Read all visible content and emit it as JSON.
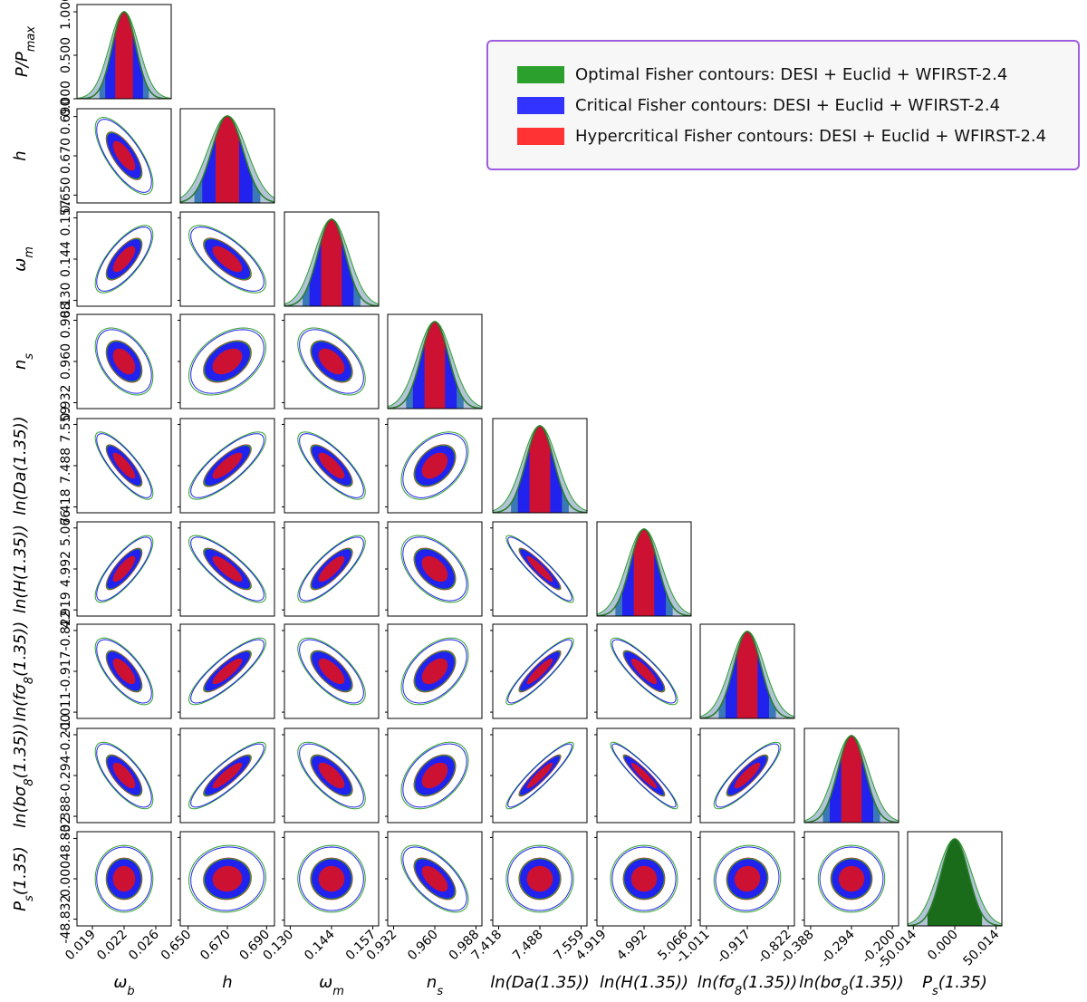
{
  "chart_data": {
    "type": "corner-fisher-contours",
    "parameters": [
      {
        "key": "wb",
        "label": "ω_b",
        "fid": 0.0225,
        "sigma": 0.0013,
        "ticks": [
          "0.019",
          "0.022",
          "0.026"
        ],
        "tickvals": [
          0.019,
          0.0225,
          0.026
        ],
        "range": [
          0.0173,
          0.0277
        ]
      },
      {
        "key": "h",
        "label": "h",
        "fid": 0.67,
        "sigma": 0.008,
        "ticks": [
          "0.650",
          "0.670",
          "0.690"
        ],
        "tickvals": [
          0.65,
          0.67,
          0.69
        ],
        "range": [
          0.646,
          0.694
        ]
      },
      {
        "key": "wm",
        "label": "ω_m",
        "fid": 0.1435,
        "sigma": 0.0045,
        "ticks": [
          "0.130",
          "0.144",
          "0.157"
        ],
        "tickvals": [
          0.13,
          0.1435,
          0.157
        ],
        "range": [
          0.1281,
          0.1589
        ]
      },
      {
        "key": "ns",
        "label": "n_s",
        "fid": 0.96,
        "sigma": 0.0093,
        "ticks": [
          "0.932",
          "0.960",
          "0.988"
        ],
        "tickvals": [
          0.932,
          0.96,
          0.988
        ],
        "range": [
          0.928,
          0.992
        ]
      },
      {
        "key": "lnDa",
        "label": "ln(Da(1.35))",
        "fid": 7.4885,
        "sigma": 0.0235,
        "ticks": [
          "7.418",
          "7.488",
          "7.559"
        ],
        "tickvals": [
          7.418,
          7.4885,
          7.559
        ],
        "range": [
          7.408,
          7.569
        ]
      },
      {
        "key": "lnH",
        "label": "ln(H(1.35))",
        "fid": 4.9925,
        "sigma": 0.0245,
        "ticks": [
          "4.919",
          "4.992",
          "5.066"
        ],
        "tickvals": [
          4.919,
          4.9925,
          5.066
        ],
        "range": [
          4.908,
          5.077
        ]
      },
      {
        "key": "lnfs8",
        "label": "ln(fσ_8(1.35))",
        "fid": -0.9165,
        "sigma": 0.0315,
        "ticks": [
          "-1.011",
          "-0.917",
          "-0.822"
        ],
        "tickvals": [
          -1.011,
          -0.9165,
          -0.822
        ],
        "range": [
          -1.0255,
          -0.8075
        ]
      },
      {
        "key": "lnbs8",
        "label": "ln(bσ_8(1.35))",
        "fid": -0.294,
        "sigma": 0.0313,
        "ticks": [
          "-0.388",
          "-0.294",
          "-0.200"
        ],
        "tickvals": [
          -0.388,
          -0.294,
          -0.2
        ],
        "range": [
          -0.4025,
          -0.1855
        ]
      },
      {
        "key": "Ps",
        "label": "P_s(1.35)",
        "fid": 0.0,
        "sigma": 16.5,
        "ticks": [
          "-50.014",
          "0.000",
          "50.014"
        ],
        "ytickvals": [
          -48.832,
          0.0,
          48.832
        ],
        "yticks": [
          "-48.832",
          "0.000",
          "48.832"
        ],
        "tickvals": [
          -50.014,
          0.0,
          50.014
        ],
        "range": [
          -57.0,
          57.0
        ]
      }
    ],
    "correlations": {
      "wb-h": -0.72,
      "wb-wm": 0.72,
      "wb-ns": -0.45,
      "wb-lnDa": -0.82,
      "wb-lnH": 0.8,
      "wb-lnfs8": -0.7,
      "wb-lnbs8": -0.72,
      "wb-Ps": 0.0,
      "h-wm": -0.72,
      "h-ns": 0.42,
      "h-lnDa": 0.8,
      "h-lnH": -0.82,
      "h-lnfs8": 0.85,
      "h-lnbs8": 0.87,
      "h-Ps": 0.05,
      "wm-ns": -0.52,
      "wm-lnDa": -0.78,
      "wm-lnH": 0.8,
      "wm-lnfs8": -0.68,
      "wm-lnbs8": -0.7,
      "wm-Ps": 0.0,
      "ns-lnDa": 0.42,
      "ns-lnH": -0.48,
      "ns-lnfs8": 0.48,
      "ns-lnbs8": 0.45,
      "ns-Ps": -0.62,
      "lnDa-lnH": -0.92,
      "lnDa-lnfs8": 0.9,
      "lnDa-lnbs8": 0.92,
      "lnDa-Ps": 0.0,
      "lnH-lnfs8": -0.86,
      "lnH-lnbs8": -0.93,
      "lnH-Ps": 0.0,
      "lnfs8-lnbs8": 0.86,
      "lnfs8-Ps": 0.05,
      "lnbs8-Ps": 0.0
    },
    "series": [
      {
        "name": "Optimal Fisher contours: DESI + Euclid + WFIRST-2.4",
        "color": "#2ca02c",
        "scale": 1.0
      },
      {
        "name": "Critical Fisher contours: DESI + Euclid + WFIRST-2.4",
        "color": "#2222ee",
        "scale": 0.95
      },
      {
        "name": "Hypercritical Fisher contours: DESI + Euclid + WFIRST-2.4",
        "color": "#dd1133",
        "scale": 0.62
      }
    ],
    "diagonal_ylabel": "P/P_max",
    "diagonal_yticks": [
      "0.000",
      "0.500",
      "1.000"
    ],
    "legend_position": "top-right"
  },
  "legend": {
    "optimal": "Optimal Fisher contours: DESI + Euclid + WFIRST-2.4",
    "critical": "Critical Fisher contours: DESI + Euclid + WFIRST-2.4",
    "hypercritical": "Hypercritical Fisher contours: DESI + Euclid + WFIRST-2.4"
  },
  "colors": {
    "optimal": "#2ca02c",
    "critical": "#2222ee",
    "hypercritical": "#dd1133",
    "legend_border": "#a05ce0"
  }
}
